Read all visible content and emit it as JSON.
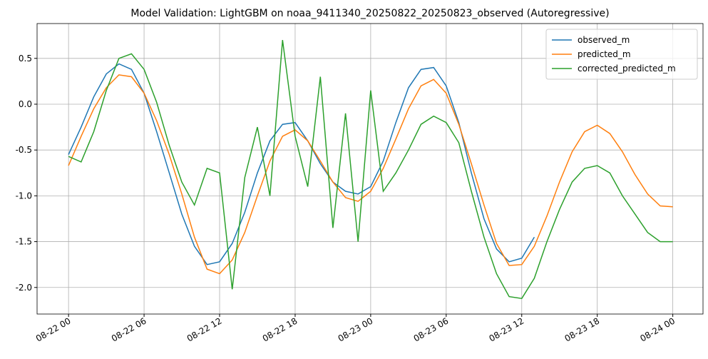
{
  "chart_data": {
    "type": "line",
    "title": "Model Validation: LightGBM on noaa_9411340_20250822_20250823_observed (Autoregressive)",
    "x": [
      0,
      1,
      2,
      3,
      4,
      5,
      6,
      7,
      8,
      9,
      10,
      11,
      12,
      13,
      14,
      15,
      16,
      17,
      18,
      19,
      20,
      21,
      22,
      23,
      24,
      25,
      26,
      27,
      28,
      29,
      30,
      31,
      32,
      33,
      34,
      35,
      36,
      37,
      38,
      39,
      40,
      41,
      42,
      43,
      44,
      45,
      46,
      47,
      48
    ],
    "series": [
      {
        "name": "observed_m",
        "color": "#1f77b4",
        "values": [
          -0.55,
          -0.25,
          0.08,
          0.33,
          0.44,
          0.38,
          0.12,
          -0.3,
          -0.75,
          -1.2,
          -1.55,
          -1.75,
          -1.72,
          -1.52,
          -1.18,
          -0.75,
          -0.4,
          -0.22,
          -0.2,
          -0.4,
          -0.65,
          -0.85,
          -0.95,
          -0.98,
          -0.9,
          -0.62,
          -0.2,
          0.18,
          0.38,
          0.4,
          0.2,
          -0.2,
          -0.75,
          -1.25,
          -1.58,
          -1.72,
          -1.68,
          -1.45,
          null,
          null,
          null,
          null,
          null,
          null,
          null,
          null,
          null,
          null,
          null
        ]
      },
      {
        "name": "predicted_m",
        "color": "#ff7f0e",
        "values": [
          -0.67,
          -0.35,
          -0.05,
          0.18,
          0.32,
          0.3,
          0.12,
          -0.18,
          -0.55,
          -0.98,
          -1.45,
          -1.8,
          -1.85,
          -1.7,
          -1.4,
          -1.0,
          -0.62,
          -0.35,
          -0.28,
          -0.4,
          -0.62,
          -0.85,
          -1.02,
          -1.06,
          -0.95,
          -0.7,
          -0.38,
          -0.05,
          0.2,
          0.27,
          0.12,
          -0.22,
          -0.65,
          -1.1,
          -1.52,
          -1.76,
          -1.75,
          -1.55,
          -1.22,
          -0.85,
          -0.52,
          -0.3,
          -0.23,
          -0.32,
          -0.52,
          -0.77,
          -0.98,
          -1.11,
          -1.12
        ]
      },
      {
        "name": "corrected_predicted_m",
        "color": "#2ca02c",
        "values": [
          -0.57,
          -0.63,
          -0.3,
          0.15,
          0.5,
          0.55,
          0.38,
          0.02,
          -0.45,
          -0.85,
          -1.1,
          -0.7,
          -0.75,
          -2.02,
          -0.8,
          -0.25,
          -1.0,
          0.7,
          -0.35,
          -0.9,
          0.3,
          -1.35,
          -0.1,
          -1.5,
          0.15,
          -0.95,
          -0.75,
          -0.5,
          -0.22,
          -0.13,
          -0.2,
          -0.42,
          -0.95,
          -1.45,
          -1.85,
          -2.1,
          -2.12,
          -1.9,
          -1.5,
          -1.15,
          -0.85,
          -0.7,
          -0.67,
          -0.75,
          -1.0,
          -1.2,
          -1.4,
          -1.5,
          -1.5
        ]
      }
    ],
    "xlim": [
      -2.5,
      50.4
    ],
    "ylim": [
      -2.29,
      0.88
    ],
    "xticks": [
      {
        "value": 0,
        "label": "08-22 00"
      },
      {
        "value": 6,
        "label": "08-22 06"
      },
      {
        "value": 12,
        "label": "08-22 12"
      },
      {
        "value": 18,
        "label": "08-22 18"
      },
      {
        "value": 24,
        "label": "08-23 00"
      },
      {
        "value": 30,
        "label": "08-23 06"
      },
      {
        "value": 36,
        "label": "08-23 12"
      },
      {
        "value": 42,
        "label": "08-23 18"
      },
      {
        "value": 48,
        "label": "08-24 00"
      }
    ],
    "yticks": [
      -2.0,
      -1.5,
      -1.0,
      -0.5,
      0.0,
      0.5
    ],
    "grid": true,
    "legend": "upper right"
  }
}
